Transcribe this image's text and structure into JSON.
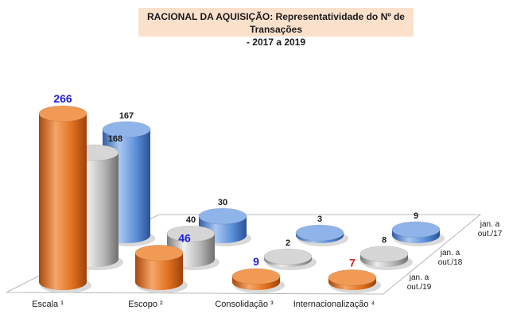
{
  "chart_data": {
    "type": "bar",
    "title_line1": "RACIONAL DA AQUISIÇÃO:  Representatividade do Nº de Transações",
    "title_line2": "- 2017 a 2019",
    "categories": [
      "Escala ¹",
      "Escopo ²",
      "Consolidação ³",
      "Internacionalização ⁴"
    ],
    "series": [
      {
        "name": "jan. a out./17",
        "color": "#5b8fd8",
        "values": [
          167,
          30,
          3,
          9
        ]
      },
      {
        "name": "jan. a out./18",
        "color": "#a9a9a9",
        "values": [
          168,
          40,
          2,
          8
        ]
      },
      {
        "name": "jan. a out./19",
        "color": "#e0701e",
        "values": [
          266,
          46,
          9,
          7
        ]
      }
    ],
    "series_label_lines": [
      [
        "jan. a",
        "out./17"
      ],
      [
        "jan. a",
        "out./18"
      ],
      [
        "jan. a",
        "out./19"
      ]
    ],
    "label_colors": {
      "default": "#1a1a1a",
      "highlight_blue": "#1f1fd8",
      "highlight_red": "#d42020"
    },
    "value_label_color_keys": [
      [
        "default",
        "default",
        "default",
        "default"
      ],
      [
        "default",
        "default",
        "default",
        "default"
      ],
      [
        "highlight_blue",
        "highlight_blue",
        "highlight_blue",
        "highlight_red"
      ]
    ],
    "legend_position": "right",
    "ylim": [
      0,
      266
    ]
  }
}
